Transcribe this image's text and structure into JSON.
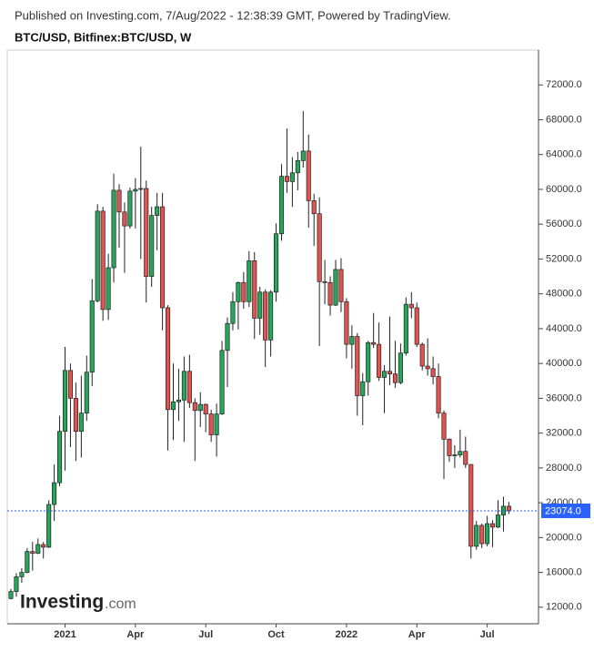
{
  "chart_data": {
    "type": "candlestick",
    "source": "Published on Investing.com, 7/Aug/2022 - 12:38:39 GMT, Powered by TradingView.",
    "title": "BTC/USD, Bitfinex:BTC/USD, W",
    "logo_main": "Investing",
    "logo_suffix": ".com",
    "categories": [
      null,
      null,
      null,
      null,
      null,
      null,
      null,
      null,
      null,
      null,
      "2021",
      null,
      null,
      null,
      null,
      null,
      null,
      null,
      null,
      null,
      null,
      null,
      null,
      "Apr",
      null,
      null,
      null,
      null,
      null,
      null,
      null,
      null,
      null,
      null,
      null,
      null,
      "Jul",
      null,
      null,
      null,
      null,
      null,
      null,
      null,
      null,
      null,
      null,
      null,
      null,
      "Oct",
      null,
      null,
      null,
      null,
      null,
      null,
      null,
      null,
      null,
      null,
      null,
      null,
      "2022",
      null,
      null,
      null,
      null,
      null,
      null,
      null,
      null,
      null,
      null,
      null,
      null,
      "Apr",
      null,
      null,
      null,
      null,
      null,
      null,
      null,
      null,
      null,
      null,
      null,
      null,
      "Jul",
      null,
      null,
      null,
      null
    ],
    "open": [
      13000,
      13800,
      15500,
      16000,
      18400,
      18200,
      19200,
      18900,
      23800,
      26300,
      32200,
      39200,
      36000,
      32200,
      34300,
      39000,
      47200,
      57500,
      46200,
      51000,
      59900,
      57400,
      55800,
      59800,
      60000,
      60100,
      50000,
      57000,
      58000,
      46400,
      34700,
      35600,
      35800,
      39100,
      35500,
      34600,
      35300,
      34200,
      31800,
      34200,
      41500,
      44600,
      47100,
      49300,
      47100,
      51800,
      45200,
      48200,
      42700,
      48200,
      54900,
      61500,
      60900,
      61900,
      63300,
      64400,
      58700,
      57200,
      49400,
      49300,
      46700,
      50800,
      47100,
      42200,
      43100,
      36300,
      37900,
      42400,
      42200,
      38400,
      39100,
      38800,
      37800,
      41200,
      46800,
      46400,
      42200,
      39700,
      39400,
      38500,
      34300,
      31300,
      29400,
      29500,
      29900,
      28400,
      19000,
      21400,
      19300,
      21600,
      21200,
      22600,
      23600
    ],
    "high": [
      14100,
      15900,
      16500,
      18800,
      19500,
      19900,
      19500,
      24300,
      28400,
      34000,
      41900,
      40000,
      37800,
      38600,
      40900,
      49700,
      58300,
      58000,
      52600,
      61800,
      60600,
      58500,
      60200,
      61300,
      64900,
      61000,
      58000,
      59600,
      59600,
      46700,
      40000,
      39400,
      40800,
      41000,
      36000,
      36700,
      35400,
      34700,
      35400,
      42600,
      45300,
      48200,
      49400,
      50500,
      52900,
      52800,
      48800,
      48500,
      48400,
      56100,
      62900,
      67000,
      63700,
      64300,
      69000,
      66300,
      59500,
      59100,
      51900,
      50000,
      51900,
      52100,
      47500,
      44400,
      43500,
      38900,
      42600,
      45800,
      44700,
      39800,
      45400,
      42600,
      42300,
      47600,
      48200,
      47000,
      42400,
      42900,
      40800,
      40000,
      34600,
      31400,
      30600,
      32400,
      31600,
      28400,
      21900,
      21600,
      22500,
      22000,
      24300,
      24700,
      24100
    ],
    "low": [
      12900,
      13200,
      14800,
      15900,
      16200,
      18100,
      17600,
      18800,
      21900,
      25900,
      27700,
      30400,
      28800,
      29200,
      33400,
      37400,
      47000,
      44900,
      45000,
      49300,
      53300,
      50400,
      55500,
      55500,
      52000,
      47000,
      48800,
      53000,
      43800,
      30000,
      31200,
      33400,
      31000,
      34900,
      28800,
      32700,
      32100,
      31000,
      29300,
      34100,
      37300,
      43800,
      43900,
      46300,
      46500,
      42800,
      43300,
      39600,
      40800,
      47100,
      54100,
      59600,
      58000,
      59900,
      62500,
      55600,
      53500,
      42000,
      46800,
      45500,
      46600,
      45900,
      40600,
      39400,
      34000,
      32900,
      36300,
      41800,
      38000,
      34300,
      37500,
      37200,
      37600,
      40900,
      45200,
      41900,
      39200,
      38600,
      37600,
      33700,
      26700,
      28700,
      28000,
      29200,
      28000,
      17600,
      18600,
      18800,
      19000,
      18900,
      21100,
      20700,
      22700
    ],
    "close": [
      13800,
      15500,
      16000,
      18400,
      18200,
      19200,
      18900,
      23800,
      26300,
      32200,
      39200,
      36000,
      32200,
      34300,
      39000,
      47200,
      57500,
      46200,
      51000,
      59900,
      57400,
      55800,
      59800,
      60000,
      60100,
      50000,
      57000,
      58000,
      46400,
      34700,
      35600,
      35800,
      39100,
      35500,
      34600,
      35300,
      34200,
      31800,
      34200,
      41500,
      44600,
      47100,
      49300,
      47100,
      51800,
      45200,
      48200,
      42700,
      48200,
      54900,
      61500,
      60900,
      61900,
      63300,
      64400,
      58700,
      57200,
      49400,
      49300,
      46700,
      50800,
      47100,
      42200,
      43100,
      36300,
      37900,
      42400,
      42200,
      38400,
      39100,
      38800,
      37800,
      41200,
      46800,
      46400,
      42200,
      39700,
      39400,
      38500,
      34300,
      31300,
      29400,
      29500,
      29900,
      28400,
      19000,
      21400,
      19300,
      21600,
      21200,
      22600,
      23600,
      23074
    ],
    "last_price_label": "23074.0",
    "up_color": "#26a65b",
    "down_color": "#e0534f",
    "price_line_color": "#2962ff",
    "ylim": [
      10100,
      76000
    ],
    "yticks": [
      {
        "value": 12000,
        "label": "12000.0"
      },
      {
        "value": 16000,
        "label": "16000.0"
      },
      {
        "value": 20000,
        "label": "20000.0"
      },
      {
        "value": 24000,
        "label": "24000.0"
      },
      {
        "value": 28000,
        "label": "28000.0"
      },
      {
        "value": 32000,
        "label": "32000.0"
      },
      {
        "value": 36000,
        "label": "36000.0"
      },
      {
        "value": 40000,
        "label": "40000.0"
      },
      {
        "value": 44000,
        "label": "44000.0"
      },
      {
        "value": 48000,
        "label": "48000.0"
      },
      {
        "value": 52000,
        "label": "52000.0"
      },
      {
        "value": 56000,
        "label": "56000.0"
      },
      {
        "value": 60000,
        "label": "60000.0"
      },
      {
        "value": 64000,
        "label": "64000.0"
      },
      {
        "value": 68000,
        "label": "68000.0"
      },
      {
        "value": 72000,
        "label": "72000.0"
      }
    ],
    "grid": false
  }
}
